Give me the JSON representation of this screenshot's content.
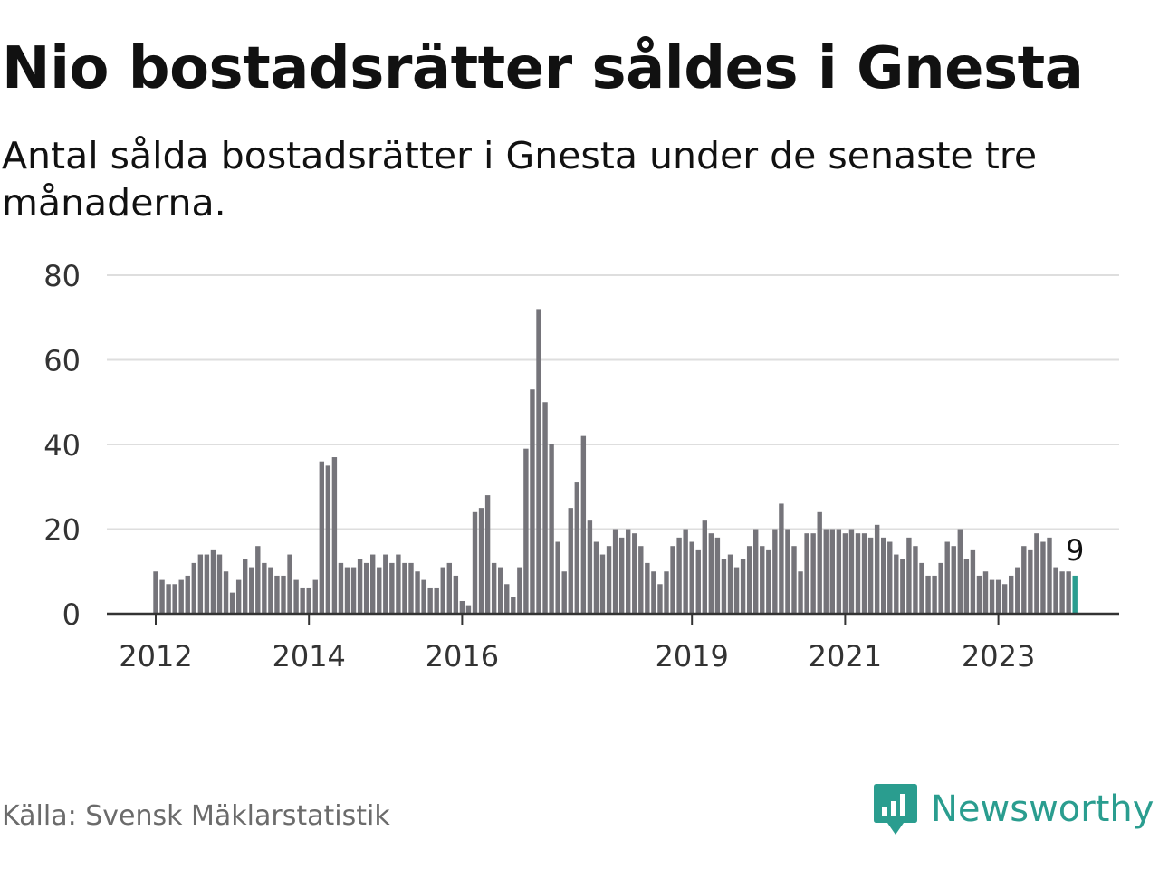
{
  "title": "Nio bostadsrätter såldes i Gnesta",
  "subtitle": "Antal sålda bostadsrätter i Gnesta under de senaste tre månaderna.",
  "source": "Källa: Svensk Mäklarstatistik",
  "brand": {
    "name": "Newsworthy",
    "icon": "bar-chart-speech-bubble-icon"
  },
  "colors": {
    "bar": "#75747a",
    "highlight": "#2a9d8f",
    "grid": "#dedede",
    "axis": "#333333",
    "text": "#111111"
  },
  "chart_data": {
    "type": "bar",
    "title": "Nio bostadsrätter såldes i Gnesta",
    "xlabel": "",
    "ylabel": "",
    "ylim": [
      0,
      80
    ],
    "yticks": [
      "0",
      "20",
      "40",
      "60",
      "80"
    ],
    "xticks": [
      {
        "label": "2012",
        "index": 0
      },
      {
        "label": "2014",
        "index": 24
      },
      {
        "label": "2016",
        "index": 48
      },
      {
        "label": "2019",
        "index": 84
      },
      {
        "label": "2021",
        "index": 108
      },
      {
        "label": "2023",
        "index": 132
      }
    ],
    "start": "2012-01",
    "values": [
      10,
      8,
      7,
      7,
      8,
      9,
      12,
      14,
      14,
      15,
      14,
      10,
      5,
      8,
      13,
      11,
      16,
      12,
      11,
      9,
      9,
      14,
      8,
      6,
      6,
      8,
      36,
      35,
      37,
      12,
      11,
      11,
      13,
      12,
      14,
      11,
      14,
      12,
      14,
      12,
      12,
      10,
      8,
      6,
      6,
      11,
      12,
      9,
      3,
      2,
      24,
      25,
      28,
      12,
      11,
      7,
      4,
      11,
      39,
      53,
      72,
      50,
      40,
      17,
      10,
      25,
      31,
      42,
      22,
      17,
      14,
      16,
      20,
      18,
      20,
      19,
      16,
      12,
      10,
      7,
      10,
      16,
      18,
      20,
      17,
      15,
      22,
      19,
      18,
      13,
      14,
      11,
      13,
      16,
      20,
      16,
      15,
      20,
      26,
      20,
      16,
      10,
      19,
      19,
      24,
      20,
      20,
      20,
      19,
      20,
      19,
      19,
      18,
      21,
      18,
      17,
      14,
      13,
      18,
      16,
      12,
      9,
      9,
      12,
      17,
      16,
      20,
      13,
      15,
      9,
      10,
      8,
      8,
      7,
      9,
      11,
      16,
      15,
      19,
      17,
      18,
      11,
      10,
      10,
      9
    ],
    "highlight_last": true,
    "annotation": {
      "text": "9",
      "target": "last"
    }
  }
}
